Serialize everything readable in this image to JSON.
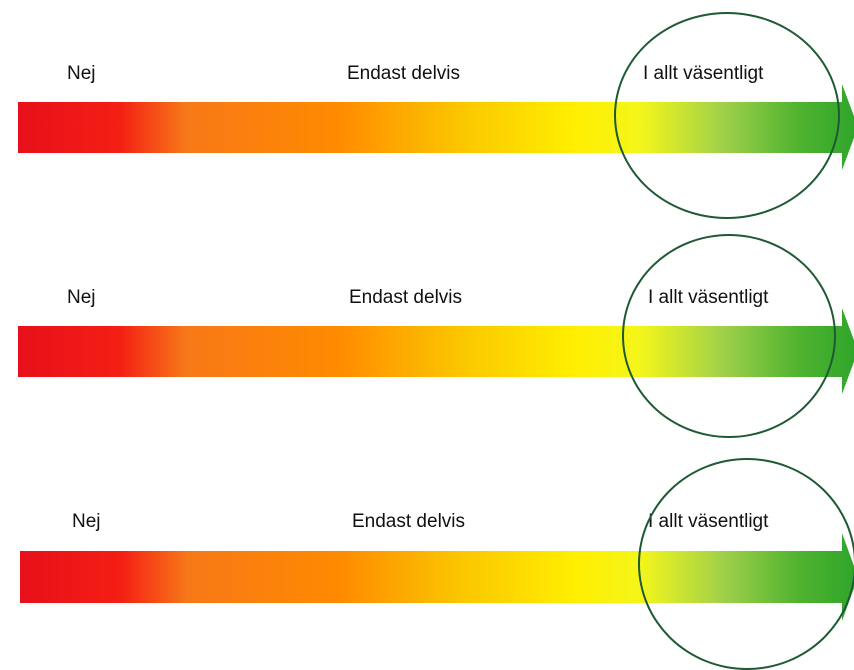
{
  "scales": [
    {
      "left_label": "Nej",
      "middle_label": "Endast delvis",
      "right_label": "I allt väsentligt",
      "highlighted": "right"
    },
    {
      "left_label": "Nej",
      "middle_label": "Endast delvis",
      "right_label": "I allt väsentligt",
      "highlighted": "right"
    },
    {
      "left_label": "Nej",
      "middle_label": "Endast delvis",
      "right_label": "I allt väsentligt",
      "highlighted": "right"
    }
  ],
  "gradient_colors": [
    "#e8101a",
    "#ff2a12",
    "#f77818",
    "#ff8a00",
    "#fbc400",
    "#ffee00",
    "#f4f61a",
    "#9fd04a",
    "#4fb32f",
    "#2ea52a"
  ],
  "circle_color": "#1e5a34"
}
